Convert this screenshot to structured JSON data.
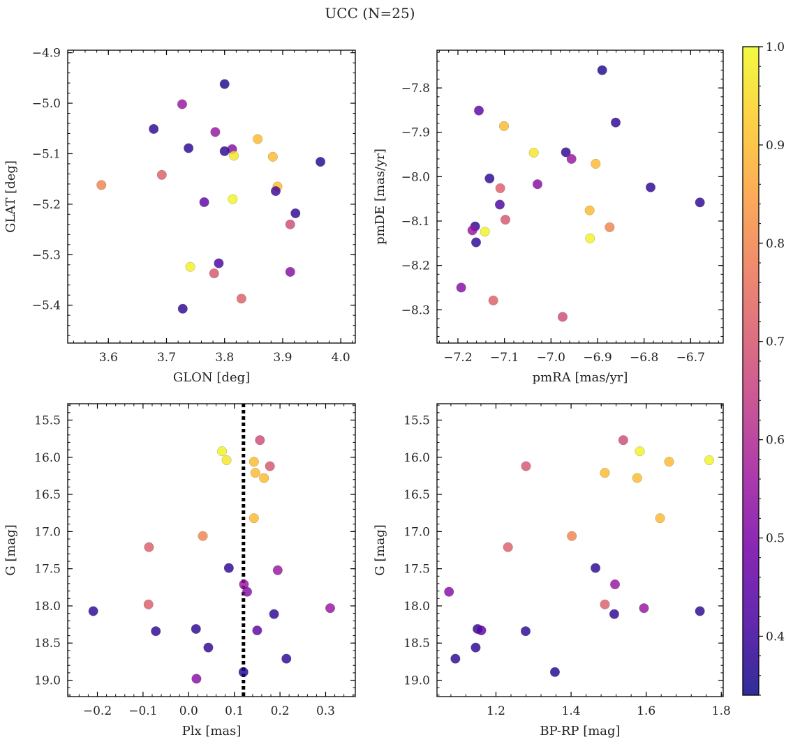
{
  "figure": {
    "title": "UCC (N=25)"
  },
  "chart_data": [
    {
      "type": "scatter",
      "xlabel": "GLON [deg]",
      "ylabel": "GLAT [deg]",
      "xlim": [
        3.53,
        4.025
      ],
      "ylim": [
        -5.475,
        -4.895
      ],
      "y_inverted": false,
      "xticks": [
        3.6,
        3.7,
        3.8,
        3.9,
        4.0
      ],
      "xtick_labels": [
        "3.6",
        "3.7",
        "3.8",
        "3.9",
        "4.0"
      ],
      "yticks": [
        -4.9,
        -5.0,
        -5.1,
        -5.2,
        -5.3,
        -5.4
      ],
      "ytick_labels": [
        "−4.9",
        "−5.0",
        "−5.1",
        "−5.2",
        "−5.3",
        "−5.4"
      ],
      "x": [
        3.8,
        3.727,
        3.678,
        3.738,
        3.784,
        3.813,
        3.8,
        3.816,
        3.857,
        3.883,
        3.965,
        3.588,
        3.692,
        3.814,
        3.891,
        3.888,
        3.765,
        3.922,
        3.913,
        3.741,
        3.79,
        3.782,
        3.913,
        3.829,
        3.728
      ],
      "y": [
        -4.962,
        -5.002,
        -5.051,
        -5.089,
        -5.057,
        -5.091,
        -5.095,
        -5.104,
        -5.071,
        -5.106,
        -5.116,
        -5.162,
        -5.142,
        -5.19,
        -5.165,
        -5.174,
        -5.196,
        -5.218,
        -5.24,
        -5.324,
        -5.317,
        -5.337,
        -5.334,
        -5.387,
        -5.407
      ],
      "color_values": [
        0.36,
        0.55,
        0.38,
        0.38,
        0.55,
        0.52,
        0.38,
        0.97,
        0.9,
        0.9,
        0.37,
        0.8,
        0.72,
        0.99,
        0.9,
        0.4,
        0.45,
        0.38,
        0.68,
        0.99,
        0.42,
        0.7,
        0.52,
        0.72,
        0.38
      ]
    },
    {
      "type": "scatter",
      "xlabel": "pmRA [mas/yr]",
      "ylabel": "pmDE [mas/yr]",
      "xlim": [
        -7.245,
        -6.63
      ],
      "ylim": [
        -8.375,
        -7.715
      ],
      "y_inverted": false,
      "xticks": [
        -7.2,
        -7.1,
        -7.0,
        -6.9,
        -6.8,
        -6.7
      ],
      "xtick_labels": [
        "−7.2",
        "−7.1",
        "−7.0",
        "−6.9",
        "−6.8",
        "−6.7"
      ],
      "yticks": [
        -7.8,
        -7.9,
        -8.0,
        -8.1,
        -8.2,
        -8.3
      ],
      "ytick_labels": [
        "−7.8",
        "−7.9",
        "−8.0",
        "−8.1",
        "−8.2",
        "−8.3"
      ],
      "x": [
        -6.89,
        -7.155,
        -6.861,
        -7.101,
        -7.037,
        -6.968,
        -6.956,
        -6.904,
        -7.132,
        -7.029,
        -7.109,
        -6.786,
        -7.11,
        -6.68,
        -7.098,
        -6.917,
        -7.163,
        -6.874,
        -7.169,
        -7.142,
        -7.161,
        -6.916,
        -7.193,
        -7.124,
        -6.975
      ],
      "y": [
        -7.76,
        -7.851,
        -7.878,
        -7.886,
        -7.946,
        -7.945,
        -7.96,
        -7.971,
        -8.004,
        -8.017,
        -8.026,
        -8.024,
        -8.063,
        -8.058,
        -8.097,
        -8.076,
        -8.112,
        -8.114,
        -8.121,
        -8.124,
        -8.148,
        -8.139,
        -8.25,
        -8.279,
        -8.316
      ],
      "color_values": [
        0.36,
        0.45,
        0.38,
        0.9,
        0.97,
        0.38,
        0.55,
        0.9,
        0.38,
        0.52,
        0.72,
        0.38,
        0.42,
        0.38,
        0.7,
        0.9,
        0.38,
        0.8,
        0.55,
        0.99,
        0.38,
        0.99,
        0.52,
        0.72,
        0.68
      ]
    },
    {
      "type": "scatter",
      "xlabel": "Plx [mas]",
      "ylabel": "G [mag]",
      "xlim": [
        -0.265,
        0.365
      ],
      "ylim": [
        19.22,
        15.28
      ],
      "y_inverted": true,
      "xticks": [
        -0.2,
        -0.1,
        0.0,
        0.1,
        0.2,
        0.3
      ],
      "xtick_labels": [
        "−0.2",
        "−0.1",
        "0.0",
        "0.1",
        "0.2",
        "0.3"
      ],
      "yticks": [
        15.5,
        16.0,
        16.5,
        17.0,
        17.5,
        18.0,
        18.5,
        19.0
      ],
      "ytick_labels": [
        "15.5",
        "16.0",
        "16.5",
        "17.0",
        "17.5",
        "18.0",
        "18.5",
        "19.0"
      ],
      "vline": {
        "x": 0.12,
        "style": "dotted",
        "color": "#000000"
      },
      "x": [
        0.156,
        0.073,
        0.083,
        0.143,
        0.178,
        0.146,
        0.165,
        0.143,
        0.031,
        -0.087,
        0.088,
        0.195,
        0.121,
        0.128,
        -0.088,
        0.31,
        0.187,
        -0.209,
        0.016,
        -0.072,
        0.15,
        0.043,
        0.214,
        0.12,
        0.017
      ],
      "y": [
        15.77,
        15.92,
        16.04,
        16.06,
        16.12,
        16.21,
        16.28,
        16.82,
        17.06,
        17.21,
        17.49,
        17.52,
        17.71,
        17.81,
        17.98,
        18.03,
        18.11,
        18.07,
        18.31,
        18.34,
        18.33,
        18.56,
        18.71,
        18.89,
        18.98
      ],
      "color_values": [
        0.68,
        0.99,
        0.97,
        0.9,
        0.7,
        0.9,
        0.9,
        0.9,
        0.8,
        0.72,
        0.38,
        0.55,
        0.55,
        0.52,
        0.72,
        0.55,
        0.38,
        0.38,
        0.38,
        0.38,
        0.45,
        0.38,
        0.38,
        0.36,
        0.52
      ]
    },
    {
      "type": "scatter",
      "xlabel": "BP-RP [mag]",
      "ylabel": "G [mag]",
      "xlim": [
        1.043,
        1.805
      ],
      "ylim": [
        19.22,
        15.28
      ],
      "y_inverted": true,
      "xticks": [
        1.2,
        1.4,
        1.6,
        1.8
      ],
      "xtick_labels": [
        "1.2",
        "1.4",
        "1.6",
        "1.8"
      ],
      "yticks": [
        15.5,
        16.0,
        16.5,
        17.0,
        17.5,
        18.0,
        18.5,
        19.0
      ],
      "ytick_labels": [
        "15.5",
        "16.0",
        "16.5",
        "17.0",
        "17.5",
        "18.0",
        "18.5",
        "19.0"
      ],
      "x": [
        1.539,
        1.583,
        1.768,
        1.661,
        1.28,
        1.49,
        1.576,
        1.637,
        1.402,
        1.232,
        1.465,
        1.517,
        1.075,
        1.49,
        1.594,
        1.515,
        1.743,
        1.151,
        1.161,
        1.279,
        1.146,
        1.092,
        1.357
      ],
      "y": [
        15.77,
        15.92,
        16.04,
        16.06,
        16.12,
        16.21,
        16.28,
        16.82,
        17.06,
        17.21,
        17.49,
        17.71,
        17.81,
        17.98,
        18.03,
        18.11,
        18.07,
        18.31,
        18.33,
        18.34,
        18.56,
        18.71,
        18.89
      ],
      "color_values": [
        0.68,
        0.99,
        0.99,
        0.9,
        0.7,
        0.9,
        0.9,
        0.9,
        0.8,
        0.72,
        0.38,
        0.55,
        0.52,
        0.72,
        0.55,
        0.38,
        0.38,
        0.38,
        0.45,
        0.38,
        0.38,
        0.38,
        0.36
      ]
    }
  ],
  "colorbar": {
    "colormap": "plasma",
    "range": [
      0.34,
      1.0
    ],
    "ticks": [
      0.4,
      0.5,
      0.6,
      0.7,
      0.8,
      0.9,
      1.0
    ],
    "tick_labels": [
      "0.4",
      "0.5",
      "0.6",
      "0.7",
      "0.8",
      "0.9",
      "1.0"
    ]
  },
  "colors": {
    "plasma_stops": [
      "#0d0887",
      "#46039f",
      "#7201a8",
      "#9c179e",
      "#bd3786",
      "#d8576b",
      "#ed7953",
      "#fb9f3a",
      "#fdca26",
      "#f0f921"
    ],
    "vline": "#000000",
    "marker_edge": "#555555"
  }
}
